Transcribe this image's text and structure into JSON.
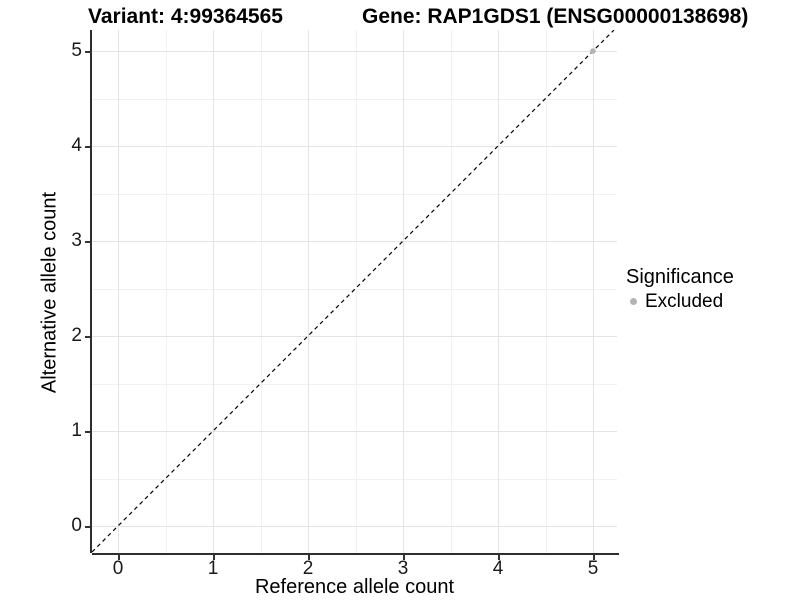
{
  "page": {
    "background": "#ffffff"
  },
  "chart_data": {
    "type": "scatter",
    "title_left": "Variant: 4:99364565",
    "title_right": "Gene: RAP1GDS1 (ENSG00000138698)",
    "xlabel": "Reference allele count",
    "ylabel": "Alternative allele count",
    "x_ticks": [
      0,
      1,
      2,
      3,
      4,
      5
    ],
    "y_ticks": [
      0,
      1,
      2,
      3,
      4,
      5
    ],
    "xlim": [
      -0.27,
      5.27
    ],
    "ylim": [
      -0.28,
      5.25
    ],
    "grid": {
      "major": true,
      "minor": true,
      "major_color": "#e4e4e4",
      "minor_color": "#f1f1f1"
    },
    "identity_line": {
      "equation": "y = x",
      "style": "dashed",
      "color": "#000000"
    },
    "series": [
      {
        "name": "Excluded",
        "color": "#b3b3b3",
        "point_radius": 2.8,
        "points": [
          {
            "x": 5,
            "y": 5
          }
        ]
      }
    ],
    "legend": {
      "title": "Significance",
      "position": "right",
      "items": [
        {
          "label": "Excluded",
          "color": "#b3b3b3"
        }
      ]
    }
  }
}
